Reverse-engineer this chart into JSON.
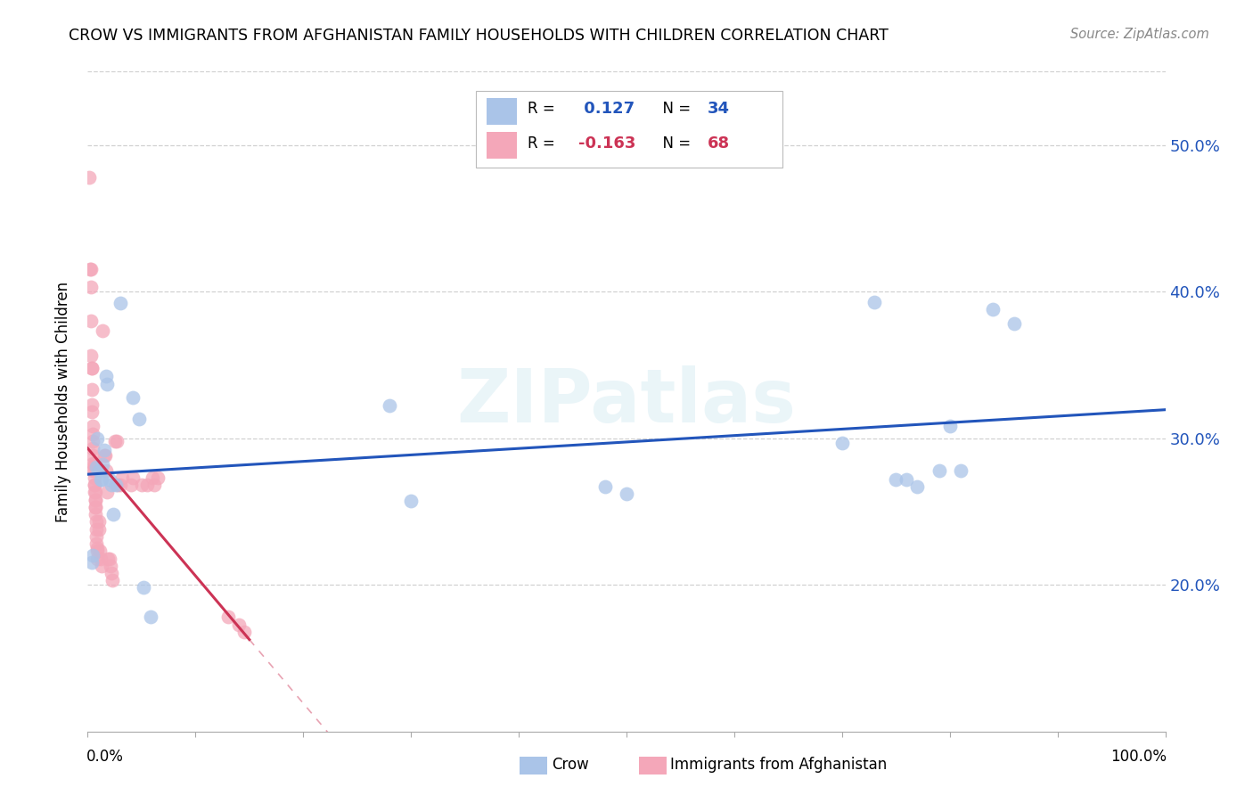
{
  "title": "CROW VS IMMIGRANTS FROM AFGHANISTAN FAMILY HOUSEHOLDS WITH CHILDREN CORRELATION CHART",
  "source": "Source: ZipAtlas.com",
  "ylabel": "Family Households with Children",
  "ytick_labels": [
    "20.0%",
    "30.0%",
    "40.0%",
    "50.0%"
  ],
  "ytick_values": [
    0.2,
    0.3,
    0.4,
    0.5
  ],
  "xlim": [
    0.0,
    1.0
  ],
  "ylim": [
    0.1,
    0.55
  ],
  "crow_color": "#aac4e8",
  "afghan_color": "#f4a7b9",
  "crow_line_color": "#2255bb",
  "afghan_line_color": "#cc3355",
  "crow_R": 0.127,
  "crow_N": 34,
  "afghan_R": -0.163,
  "afghan_N": 68,
  "crow_legend": "Crow",
  "afghan_legend": "Immigrants from Afghanistan",
  "crow_x": [
    0.004,
    0.005,
    0.008,
    0.009,
    0.01,
    0.012,
    0.013,
    0.014,
    0.015,
    0.017,
    0.018,
    0.02,
    0.022,
    0.024,
    0.026,
    0.03,
    0.042,
    0.048,
    0.052,
    0.058,
    0.28,
    0.3,
    0.48,
    0.5,
    0.7,
    0.73,
    0.75,
    0.76,
    0.77,
    0.79,
    0.8,
    0.81,
    0.84,
    0.86
  ],
  "crow_y": [
    0.215,
    0.22,
    0.28,
    0.3,
    0.278,
    0.272,
    0.272,
    0.282,
    0.292,
    0.342,
    0.337,
    0.272,
    0.268,
    0.248,
    0.268,
    0.392,
    0.328,
    0.313,
    0.198,
    0.178,
    0.322,
    0.257,
    0.267,
    0.262,
    0.297,
    0.393,
    0.272,
    0.272,
    0.267,
    0.278,
    0.308,
    0.278,
    0.388,
    0.378
  ],
  "afghan_x": [
    0.001,
    0.002,
    0.003,
    0.003,
    0.003,
    0.003,
    0.004,
    0.004,
    0.004,
    0.004,
    0.004,
    0.005,
    0.005,
    0.005,
    0.005,
    0.005,
    0.005,
    0.005,
    0.006,
    0.006,
    0.006,
    0.006,
    0.006,
    0.006,
    0.006,
    0.007,
    0.007,
    0.007,
    0.007,
    0.007,
    0.007,
    0.008,
    0.008,
    0.008,
    0.008,
    0.009,
    0.009,
    0.009,
    0.01,
    0.01,
    0.011,
    0.012,
    0.013,
    0.014,
    0.015,
    0.016,
    0.017,
    0.018,
    0.019,
    0.02,
    0.021,
    0.022,
    0.023,
    0.025,
    0.027,
    0.028,
    0.03,
    0.032,
    0.04,
    0.042,
    0.05,
    0.055,
    0.06,
    0.062,
    0.065,
    0.13,
    0.14,
    0.145
  ],
  "afghan_y": [
    0.478,
    0.415,
    0.415,
    0.403,
    0.38,
    0.356,
    0.348,
    0.348,
    0.333,
    0.323,
    0.318,
    0.308,
    0.303,
    0.298,
    0.293,
    0.288,
    0.283,
    0.278,
    0.283,
    0.281,
    0.278,
    0.273,
    0.268,
    0.268,
    0.263,
    0.263,
    0.258,
    0.258,
    0.253,
    0.253,
    0.248,
    0.243,
    0.238,
    0.233,
    0.228,
    0.225,
    0.223,
    0.218,
    0.243,
    0.238,
    0.223,
    0.218,
    0.213,
    0.373,
    0.288,
    0.288,
    0.278,
    0.263,
    0.218,
    0.218,
    0.213,
    0.208,
    0.203,
    0.298,
    0.298,
    0.268,
    0.268,
    0.273,
    0.268,
    0.273,
    0.268,
    0.268,
    0.273,
    0.268,
    0.273,
    0.178,
    0.173,
    0.168
  ],
  "watermark": "ZIPatlas",
  "background_color": "#ffffff",
  "grid_color": "#cccccc"
}
